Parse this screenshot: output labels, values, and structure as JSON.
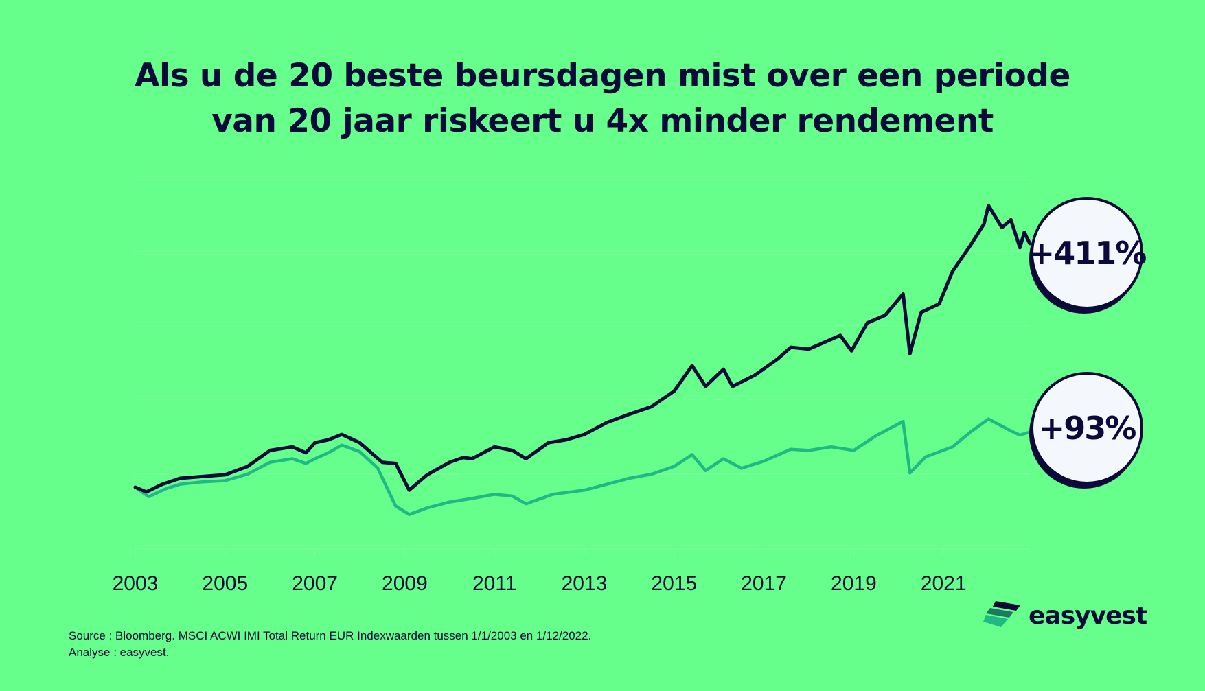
{
  "title": {
    "line1": "Als u de 20 beste beursdagen mist over een periode",
    "line2": "van 20 jaar riskeert u 4x minder rendement"
  },
  "chart_data": {
    "type": "line",
    "title": "Als u de 20 beste beursdagen mist over een periode van 20 jaar riskeert u 4x minder rendement",
    "xlabel": "",
    "ylabel": "",
    "x_ticks": [
      "2003",
      "2005",
      "2007",
      "2009",
      "2011",
      "2013",
      "2015",
      "2017",
      "2019",
      "2021"
    ],
    "xlim": [
      2003,
      2022.92
    ],
    "ylim": [
      -100,
      515
    ],
    "grid": true,
    "series": [
      {
        "color": "#0b0a3a",
        "end_label": "+411%",
        "points": [
          [
            2003.0,
            0
          ],
          [
            2003.25,
            -8
          ],
          [
            2003.6,
            5
          ],
          [
            2004.0,
            15
          ],
          [
            2004.5,
            18
          ],
          [
            2005.0,
            21
          ],
          [
            2005.5,
            35
          ],
          [
            2006.0,
            62
          ],
          [
            2006.5,
            68
          ],
          [
            2006.8,
            58
          ],
          [
            2007.0,
            75
          ],
          [
            2007.3,
            80
          ],
          [
            2007.6,
            89
          ],
          [
            2008.0,
            75
          ],
          [
            2008.5,
            42
          ],
          [
            2008.8,
            40
          ],
          [
            2009.1,
            -5
          ],
          [
            2009.5,
            21
          ],
          [
            2010.0,
            42
          ],
          [
            2010.3,
            50
          ],
          [
            2010.5,
            48
          ],
          [
            2011.0,
            68
          ],
          [
            2011.4,
            62
          ],
          [
            2011.7,
            48
          ],
          [
            2012.2,
            75
          ],
          [
            2012.6,
            80
          ],
          [
            2013.0,
            89
          ],
          [
            2013.5,
            109
          ],
          [
            2014.0,
            123
          ],
          [
            2014.5,
            136
          ],
          [
            2015.0,
            162
          ],
          [
            2015.4,
            205
          ],
          [
            2015.7,
            170
          ],
          [
            2016.1,
            199
          ],
          [
            2016.3,
            170
          ],
          [
            2016.8,
            189
          ],
          [
            2017.3,
            216
          ],
          [
            2017.6,
            236
          ],
          [
            2018.0,
            233
          ],
          [
            2018.7,
            256
          ],
          [
            2018.95,
            230
          ],
          [
            2019.3,
            277
          ],
          [
            2019.7,
            290
          ],
          [
            2020.1,
            326
          ],
          [
            2020.25,
            225
          ],
          [
            2020.5,
            295
          ],
          [
            2020.9,
            309
          ],
          [
            2021.2,
            364
          ],
          [
            2021.6,
            408
          ],
          [
            2021.9,
            444
          ],
          [
            2022.0,
            475
          ],
          [
            2022.3,
            438
          ],
          [
            2022.5,
            451
          ],
          [
            2022.7,
            404
          ],
          [
            2022.8,
            430
          ],
          [
            2022.92,
            411
          ]
        ]
      },
      {
        "color": "#20b985",
        "end_label": "+93%",
        "points": [
          [
            2003.0,
            0
          ],
          [
            2003.3,
            -16
          ],
          [
            2003.7,
            -2
          ],
          [
            2004.0,
            5
          ],
          [
            2004.5,
            9
          ],
          [
            2005.0,
            11
          ],
          [
            2005.5,
            22
          ],
          [
            2006.0,
            42
          ],
          [
            2006.5,
            48
          ],
          [
            2006.8,
            40
          ],
          [
            2007.0,
            48
          ],
          [
            2007.3,
            58
          ],
          [
            2007.6,
            71
          ],
          [
            2008.0,
            60
          ],
          [
            2008.4,
            32
          ],
          [
            2008.8,
            -32
          ],
          [
            2009.1,
            -46
          ],
          [
            2009.5,
            -35
          ],
          [
            2010.0,
            -25
          ],
          [
            2010.5,
            -19
          ],
          [
            2011.0,
            -12
          ],
          [
            2011.4,
            -15
          ],
          [
            2011.7,
            -28
          ],
          [
            2012.3,
            -12
          ],
          [
            2013.0,
            -5
          ],
          [
            2013.5,
            5
          ],
          [
            2014.0,
            15
          ],
          [
            2014.5,
            22
          ],
          [
            2015.0,
            35
          ],
          [
            2015.4,
            55
          ],
          [
            2015.7,
            28
          ],
          [
            2016.1,
            48
          ],
          [
            2016.5,
            32
          ],
          [
            2017.0,
            44
          ],
          [
            2017.6,
            64
          ],
          [
            2018.0,
            62
          ],
          [
            2018.5,
            68
          ],
          [
            2019.0,
            62
          ],
          [
            2019.5,
            87
          ],
          [
            2020.1,
            111
          ],
          [
            2020.25,
            24
          ],
          [
            2020.6,
            51
          ],
          [
            2021.2,
            68
          ],
          [
            2021.6,
            93
          ],
          [
            2022.0,
            115
          ],
          [
            2022.5,
            95
          ],
          [
            2022.7,
            88
          ],
          [
            2022.92,
            93
          ]
        ]
      }
    ]
  },
  "source": {
    "line1": "Source : Bloomberg. MSCI ACWI IMI Total Return EUR Indexwaarden tussen 1/1/2003 en 1/12/2022.",
    "line2": "Analyse : easyvest."
  },
  "logo": {
    "text": "easyvest"
  },
  "colors": {
    "background": "#66ff8c",
    "dark": "#0b0a3a",
    "accent": "#20b985"
  }
}
